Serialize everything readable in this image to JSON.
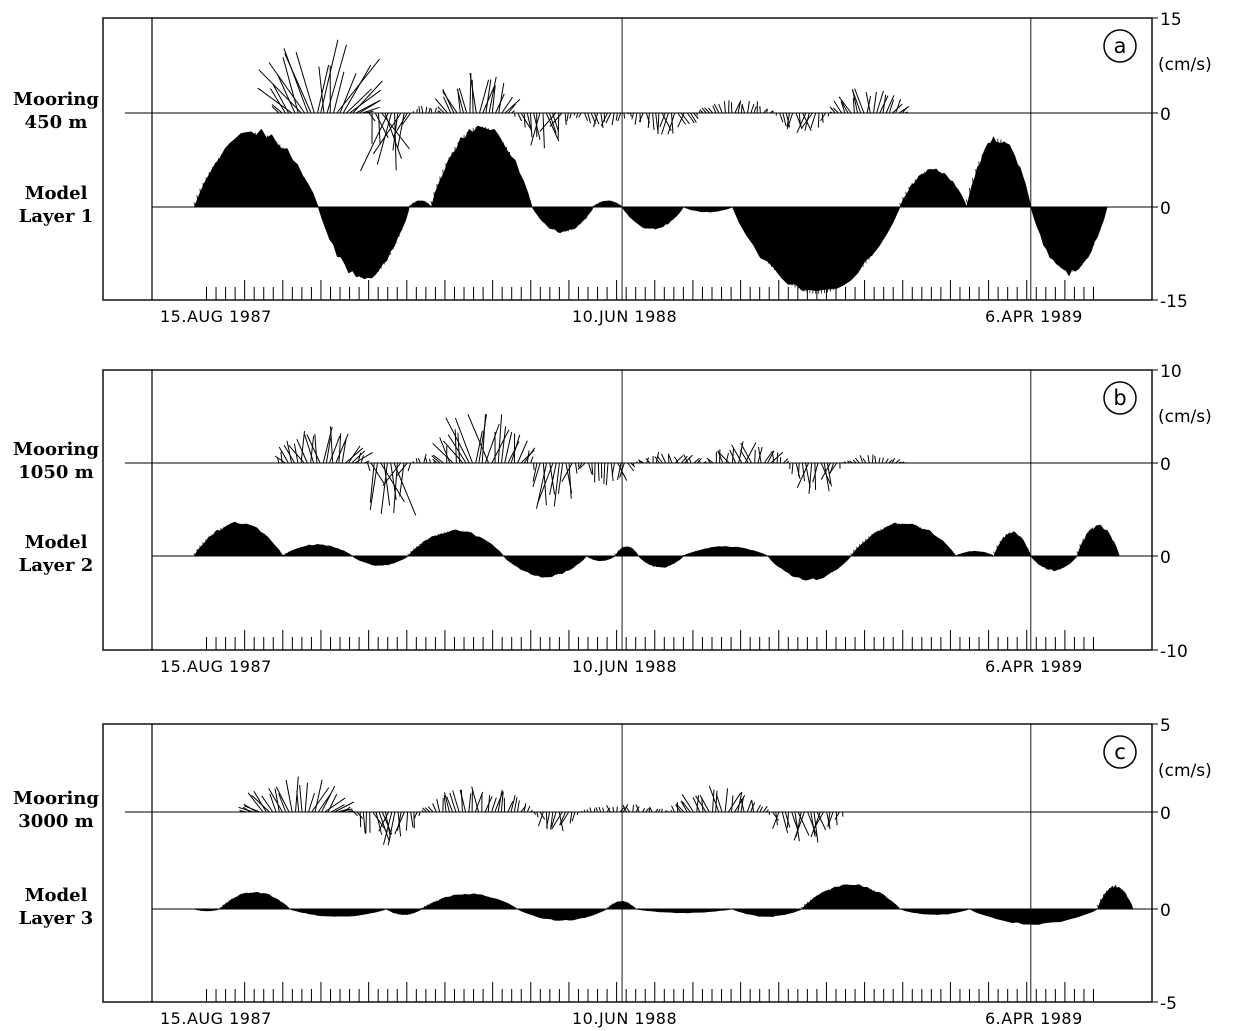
{
  "chart_data": [
    {
      "type": "line",
      "panel_letter": "a",
      "unit_label": "(cm/s)",
      "ylim": [
        -15,
        15
      ],
      "y_ticks": [
        "15",
        "0",
        "0",
        "-15"
      ],
      "row_labels": [
        {
          "line1": "Mooring",
          "line2": "450 m"
        },
        {
          "line1": "Model",
          "line2": "Layer 1"
        }
      ],
      "x_labels": [
        "15.AUG 1987",
        "10.JUN 1988",
        "6.APR 1989"
      ],
      "series": [
        {
          "name": "Mooring 450 m",
          "style": "sticks",
          "record": [
            "1987-10-01",
            "1989-01-05"
          ],
          "segments": [
            {
              "from": "1987-10-01",
              "to": "1987-12-06",
              "amp": 12.5,
              "dir": 1,
              "skew": 1.2,
              "wobble": 0.35
            },
            {
              "from": "1987-12-06",
              "to": "1988-01-08",
              "amp": 11.0,
              "dir": -1,
              "skew": -0.5,
              "wobble": 0.5
            },
            {
              "from": "1988-01-08",
              "to": "1988-01-28",
              "amp": 1.5,
              "dir": 1,
              "skew": 0.3,
              "wobble": 0.4
            },
            {
              "from": "1988-01-28",
              "to": "1988-03-22",
              "amp": 7.5,
              "dir": 1,
              "skew": 0.8,
              "wobble": 0.3
            },
            {
              "from": "1988-03-22",
              "to": "1988-05-05",
              "amp": 6.0,
              "dir": -1,
              "skew": -0.6,
              "wobble": 0.5
            },
            {
              "from": "1988-05-05",
              "to": "1988-06-15",
              "amp": 2.5,
              "dir": -1,
              "skew": 0.4,
              "wobble": 0.6
            },
            {
              "from": "1988-06-15",
              "to": "1988-08-05",
              "amp": 4.0,
              "dir": -1,
              "skew": 0.3,
              "wobble": 0.7
            },
            {
              "from": "1988-08-05",
              "to": "1988-09-30",
              "amp": 2.5,
              "dir": 1,
              "skew": 0.6,
              "wobble": 0.5
            },
            {
              "from": "1988-09-30",
              "to": "1988-11-10",
              "amp": 4.0,
              "dir": -1,
              "skew": -0.4,
              "wobble": 0.5
            },
            {
              "from": "1988-11-10",
              "to": "1989-01-05",
              "amp": 4.5,
              "dir": 1,
              "skew": 1.0,
              "wobble": 0.3
            }
          ]
        },
        {
          "name": "Model Layer 1",
          "style": "filled",
          "record": [
            "1987-08-01",
            "1989-06-01"
          ],
          "segments": [
            {
              "from": "1987-08-01",
              "to": "1987-10-31",
              "amp": 12.0,
              "dir": 1
            },
            {
              "from": "1987-10-31",
              "to": "1988-01-06",
              "amp": 11.5,
              "dir": -1
            },
            {
              "from": "1988-01-06",
              "to": "1988-01-22",
              "amp": 1.0,
              "dir": 1
            },
            {
              "from": "1988-01-22",
              "to": "1988-04-05",
              "amp": 13.0,
              "dir": 1
            },
            {
              "from": "1988-04-05",
              "to": "1988-05-20",
              "amp": 4.0,
              "dir": -1
            },
            {
              "from": "1988-05-20",
              "to": "1988-06-10",
              "amp": 1.0,
              "dir": 1
            },
            {
              "from": "1988-06-10",
              "to": "1988-07-25",
              "amp": 3.5,
              "dir": -1
            },
            {
              "from": "1988-07-25",
              "to": "1988-08-30",
              "amp": 0.8,
              "dir": -1
            },
            {
              "from": "1988-08-30",
              "to": "1988-12-31",
              "amp": 14.0,
              "dir": -1
            },
            {
              "from": "1988-12-31",
              "to": "1989-02-18",
              "amp": 6.0,
              "dir": 1
            },
            {
              "from": "1989-02-18",
              "to": "1989-04-06",
              "amp": 11.0,
              "dir": 1
            },
            {
              "from": "1989-04-06",
              "to": "1989-06-01",
              "amp": 10.5,
              "dir": -1
            }
          ]
        }
      ]
    },
    {
      "type": "line",
      "panel_letter": "b",
      "unit_label": "(cm/s)",
      "ylim": [
        -10,
        10
      ],
      "y_ticks": [
        "10",
        "0",
        "0",
        "-10"
      ],
      "row_labels": [
        {
          "line1": "Mooring",
          "line2": "1050 m"
        },
        {
          "line1": "Model",
          "line2": "Layer 2"
        }
      ],
      "x_labels": [
        "15.AUG 1987",
        "10.JUN 1988",
        "6.APR 1989"
      ],
      "series": [
        {
          "name": "Mooring 1050 m",
          "style": "sticks",
          "record": [
            "1987-10-01",
            "1989-01-05"
          ],
          "segments": [
            {
              "from": "1987-10-01",
              "to": "1987-12-05",
              "amp": 4.5,
              "dir": 1,
              "skew": 0.8,
              "wobble": 0.6
            },
            {
              "from": "1987-12-05",
              "to": "1988-01-08",
              "amp": 7.0,
              "dir": -1,
              "skew": -0.5,
              "wobble": 0.5
            },
            {
              "from": "1988-01-08",
              "to": "1988-01-25",
              "amp": 1.0,
              "dir": 1,
              "skew": 0.3,
              "wobble": 0.4
            },
            {
              "from": "1988-01-25",
              "to": "1988-04-05",
              "amp": 6.0,
              "dir": 1,
              "skew": 0.6,
              "wobble": 0.5
            },
            {
              "from": "1988-04-05",
              "to": "1988-05-08",
              "amp": 6.0,
              "dir": -1,
              "skew": -0.3,
              "wobble": 0.5
            },
            {
              "from": "1988-05-08",
              "to": "1988-06-20",
              "amp": 2.5,
              "dir": -1,
              "skew": 0.3,
              "wobble": 0.6
            },
            {
              "from": "1988-06-20",
              "to": "1988-08-10",
              "amp": 1.5,
              "dir": 1,
              "skew": 0.5,
              "wobble": 0.8
            },
            {
              "from": "1988-08-10",
              "to": "1988-10-10",
              "amp": 2.5,
              "dir": 1,
              "skew": 0.5,
              "wobble": 0.6
            },
            {
              "from": "1988-10-10",
              "to": "1988-11-18",
              "amp": 3.5,
              "dir": -1,
              "skew": -0.3,
              "wobble": 0.5
            },
            {
              "from": "1988-11-18",
              "to": "1989-01-05",
              "amp": 1.0,
              "dir": 1,
              "skew": 1.5,
              "wobble": 0.3
            }
          ]
        },
        {
          "name": "Model Layer 2",
          "style": "filled",
          "record": [
            "1987-08-01",
            "1989-06-10"
          ],
          "segments": [
            {
              "from": "1987-08-01",
              "to": "1987-10-05",
              "amp": 3.5,
              "dir": 1
            },
            {
              "from": "1987-10-05",
              "to": "1987-11-25",
              "amp": 1.2,
              "dir": 1
            },
            {
              "from": "1987-11-25",
              "to": "1988-01-05",
              "amp": 1.0,
              "dir": -1
            },
            {
              "from": "1988-01-05",
              "to": "1988-03-15",
              "amp": 2.7,
              "dir": 1
            },
            {
              "from": "1988-03-15",
              "to": "1988-05-15",
              "amp": 2.2,
              "dir": -1
            },
            {
              "from": "1988-05-15",
              "to": "1988-06-05",
              "amp": 0.5,
              "dir": -1
            },
            {
              "from": "1988-06-05",
              "to": "1988-06-22",
              "amp": 1.0,
              "dir": 1
            },
            {
              "from": "1988-06-22",
              "to": "1988-07-25",
              "amp": 1.2,
              "dir": -1
            },
            {
              "from": "1988-07-25",
              "to": "1988-09-25",
              "amp": 1.0,
              "dir": 1
            },
            {
              "from": "1988-09-25",
              "to": "1988-11-25",
              "amp": 2.5,
              "dir": -1
            },
            {
              "from": "1988-11-25",
              "to": "1989-02-10",
              "amp": 3.5,
              "dir": 1
            },
            {
              "from": "1989-02-10",
              "to": "1989-03-10",
              "amp": 0.5,
              "dir": 1
            },
            {
              "from": "1989-03-10",
              "to": "1989-04-06",
              "amp": 2.5,
              "dir": 1
            },
            {
              "from": "1989-04-06",
              "to": "1989-05-10",
              "amp": 1.5,
              "dir": -1
            },
            {
              "from": "1989-05-10",
              "to": "1989-06-10",
              "amp": 3.2,
              "dir": 1
            }
          ]
        }
      ]
    },
    {
      "type": "line",
      "panel_letter": "c",
      "unit_label": "(cm/s)",
      "ylim": [
        -5,
        5
      ],
      "y_ticks": [
        "5",
        "0",
        "0",
        "-5"
      ],
      "row_labels": [
        {
          "line1": "Mooring",
          "line2": "3000 m"
        },
        {
          "line1": "Model",
          "line2": "Layer 3"
        }
      ],
      "x_labels": [
        "15.AUG 1987",
        "10.JUN 1988",
        "6.APR 1989"
      ],
      "series": [
        {
          "name": "Mooring 3000 m",
          "style": "sticks",
          "record": [
            "1987-09-05",
            "1988-11-20"
          ],
          "segments": [
            {
              "from": "1987-09-05",
              "to": "1987-11-25",
              "amp": 2.0,
              "dir": 1,
              "skew": 1.5,
              "wobble": 0.3
            },
            {
              "from": "1987-11-25",
              "to": "1988-01-15",
              "amp": 2.0,
              "dir": -1,
              "skew": -0.5,
              "wobble": 0.5
            },
            {
              "from": "1988-01-15",
              "to": "1988-04-05",
              "amp": 1.5,
              "dir": 1,
              "skew": 0.6,
              "wobble": 0.4
            },
            {
              "from": "1988-04-05",
              "to": "1988-05-10",
              "amp": 1.2,
              "dir": -1,
              "skew": -0.4,
              "wobble": 0.6
            },
            {
              "from": "1988-05-10",
              "to": "1988-07-15",
              "amp": 0.5,
              "dir": 1,
              "skew": 0.5,
              "wobble": 0.8
            },
            {
              "from": "1988-07-15",
              "to": "1988-09-25",
              "amp": 1.5,
              "dir": 1,
              "skew": 0.5,
              "wobble": 0.5
            },
            {
              "from": "1988-09-25",
              "to": "1988-11-20",
              "amp": 1.8,
              "dir": -1,
              "skew": -0.2,
              "wobble": 0.5
            }
          ]
        },
        {
          "name": "Model Layer 3",
          "style": "filled",
          "record": [
            "1987-08-01",
            "1989-06-20"
          ],
          "segments": [
            {
              "from": "1987-08-01",
              "to": "1987-08-20",
              "amp": 0.1,
              "dir": -1
            },
            {
              "from": "1987-08-20",
              "to": "1987-10-10",
              "amp": 0.9,
              "dir": 1
            },
            {
              "from": "1987-10-10",
              "to": "1987-12-20",
              "amp": 0.4,
              "dir": -1
            },
            {
              "from": "1987-12-20",
              "to": "1988-01-15",
              "amp": 0.3,
              "dir": -1
            },
            {
              "from": "1988-01-15",
              "to": "1988-03-25",
              "amp": 0.8,
              "dir": 1
            },
            {
              "from": "1988-03-25",
              "to": "1988-05-30",
              "amp": 0.6,
              "dir": -1
            },
            {
              "from": "1988-05-30",
              "to": "1988-06-20",
              "amp": 0.4,
              "dir": 1
            },
            {
              "from": "1988-06-20",
              "to": "1988-08-30",
              "amp": 0.2,
              "dir": -1
            },
            {
              "from": "1988-08-30",
              "to": "1988-10-20",
              "amp": 0.4,
              "dir": -1
            },
            {
              "from": "1988-10-20",
              "to": "1988-12-31",
              "amp": 1.3,
              "dir": 1
            },
            {
              "from": "1988-12-31",
              "to": "1989-02-20",
              "amp": 0.3,
              "dir": -1
            },
            {
              "from": "1989-02-20",
              "to": "1989-05-25",
              "amp": 0.8,
              "dir": -1
            },
            {
              "from": "1989-05-25",
              "to": "1989-06-20",
              "amp": 1.2,
              "dir": 1
            }
          ]
        }
      ]
    }
  ]
}
